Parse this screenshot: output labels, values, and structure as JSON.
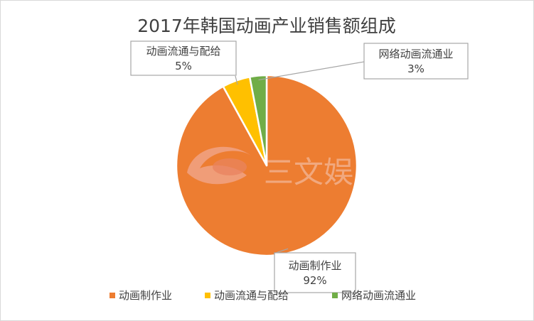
{
  "chart_data": {
    "type": "pie",
    "title": "2017年韩国动画产业销售额组成",
    "categories": [
      "动画制作业",
      "动画流通与配给",
      "网络动画流通业"
    ],
    "values": [
      92,
      5,
      3
    ],
    "value_labels": [
      "92%",
      "5%",
      "3%"
    ],
    "colors": [
      "#ED7D31",
      "#FFC000",
      "#70AD47"
    ],
    "legend": {
      "position": "bottom",
      "entries": [
        "动画制作业",
        "动画流通与配给",
        "网络动画流通业"
      ]
    }
  },
  "watermark": {
    "text": "三文娱"
  }
}
